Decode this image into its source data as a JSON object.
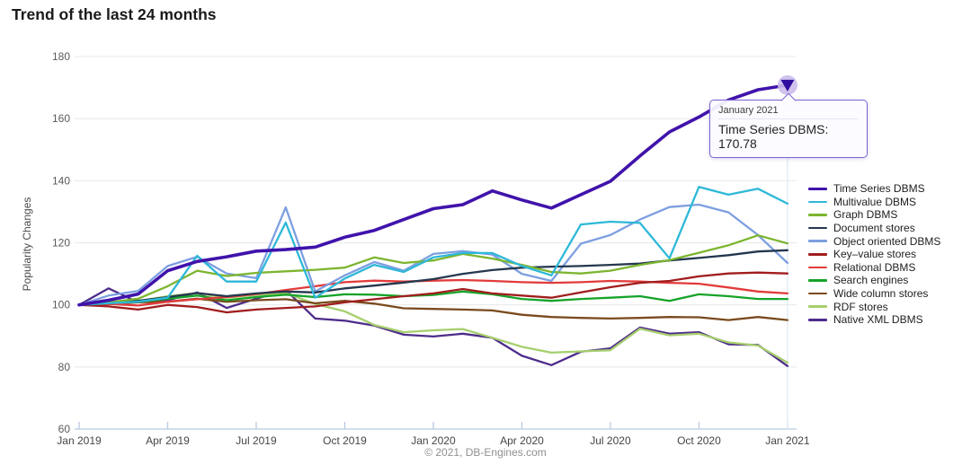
{
  "page": {
    "title": "Trend of the last 24 months",
    "footer": "© 2021, DB-Engines.com"
  },
  "tooltip": {
    "date": "January 2021",
    "value_text": "Time Series DBMS: 170.78"
  },
  "colors": {
    "grid": "#e8e8e8",
    "axis_line": "#c3d3e6",
    "tick": "#b9cadf",
    "crosshair": "#dfe8f6",
    "y_label": "#5a5a5a",
    "x_label": "#454545",
    "axis_title": "#4a4a4a",
    "marker_circle": "#cbbcec",
    "marker_triangle": "#2f0d9e",
    "tooltip_border": "#7e63d2"
  },
  "chart_data": {
    "type": "line",
    "title": "Trend of the last 24 months",
    "xlabel": "",
    "ylabel": "Popularity Changes",
    "ylim": [
      60,
      180
    ],
    "yticks": [
      60,
      80,
      100,
      120,
      140,
      160,
      180
    ],
    "grid": true,
    "legend_position": "right",
    "x": [
      "Jan 2019",
      "Feb 2019",
      "Mar 2019",
      "Apr 2019",
      "May 2019",
      "Jun 2019",
      "Jul 2019",
      "Aug 2019",
      "Sep 2019",
      "Oct 2019",
      "Nov 2019",
      "Dec 2019",
      "Jan 2020",
      "Feb 2020",
      "Mar 2020",
      "Apr 2020",
      "May 2020",
      "Jun 2020",
      "Jul 2020",
      "Aug 2020",
      "Sep 2020",
      "Oct 2020",
      "Nov 2020",
      "Dec 2020",
      "Jan 2021"
    ],
    "x_tick_indices": [
      0,
      3,
      6,
      9,
      12,
      15,
      18,
      21,
      24
    ],
    "x_tick_labels": [
      "Jan 2019",
      "Apr 2019",
      "Jul 2019",
      "Oct 2019",
      "Jan 2020",
      "Apr 2020",
      "Jul 2020",
      "Oct 2020",
      "Jan 2021"
    ],
    "highlight": {
      "series": "Time Series DBMS",
      "x": "Jan 2021",
      "value": 170.78
    },
    "series": [
      {
        "name": "Time Series DBMS",
        "color": "#4013ab",
        "width": 3.6,
        "values": [
          100,
          101.5,
          103.5,
          111,
          114,
          115.5,
          117.3,
          117.8,
          118.6,
          121.8,
          124,
          127.5,
          131,
          132.3,
          136.7,
          133.8,
          131.2,
          135.5,
          139.8,
          148,
          155.7,
          160.5,
          166,
          169.3,
          170.78
        ]
      },
      {
        "name": "Multivalue DBMS",
        "color": "#2eb8d8",
        "width": 2.3,
        "values": [
          100,
          100.5,
          101,
          102.3,
          115.8,
          107.5,
          107.5,
          126.5,
          102.3,
          108.5,
          112.9,
          110.6,
          115.3,
          116.7,
          116.7,
          112.5,
          109.5,
          125.9,
          126.8,
          126.4,
          115,
          138,
          135.5,
          137.4,
          132.6
        ]
      },
      {
        "name": "Graph DBMS",
        "color": "#7cb52f",
        "width": 2.3,
        "values": [
          100,
          100.8,
          102,
          106,
          111,
          109.3,
          110.3,
          110.8,
          111.3,
          112,
          115.3,
          113.5,
          114.3,
          116.4,
          114.9,
          112.9,
          110.6,
          110.1,
          111,
          112.9,
          114.4,
          116.8,
          119.2,
          122.4,
          119.8
        ]
      },
      {
        "name": "Document stores",
        "color": "#24374e",
        "width": 2.3,
        "values": [
          100,
          100.5,
          101.3,
          102.5,
          103.8,
          102.8,
          103.7,
          104.3,
          104,
          105.3,
          106.2,
          107.2,
          108.3,
          110,
          111.2,
          112,
          112.3,
          112.5,
          112.9,
          113.3,
          114.3,
          115.1,
          116,
          117.2,
          117.6
        ]
      },
      {
        "name": "Object oriented DBMS",
        "color": "#7d9fe0",
        "width": 2.3,
        "values": [
          100,
          103,
          104.5,
          112.5,
          115.5,
          110.1,
          108.6,
          131.4,
          104.3,
          109.5,
          113.8,
          111,
          116.4,
          117.3,
          116.2,
          110,
          107.7,
          119.7,
          122.5,
          127.5,
          131.5,
          132.3,
          129.8,
          122.5,
          113.5
        ]
      },
      {
        "name": "Key–value stores",
        "color": "#a11d1d",
        "width": 2.3,
        "values": [
          100,
          99.5,
          98.5,
          100,
          99.3,
          97.6,
          98.5,
          99,
          99.5,
          100.8,
          101.8,
          102.8,
          103.7,
          105.1,
          103.7,
          103,
          102.3,
          104,
          105.7,
          107.1,
          107.7,
          109.2,
          110.1,
          110.4,
          110.1
        ]
      },
      {
        "name": "Relational DBMS",
        "color": "#e23b3b",
        "width": 2.3,
        "values": [
          100,
          100.3,
          99.8,
          101,
          101.8,
          102.5,
          103.5,
          104.8,
          106,
          107.3,
          107.8,
          107.5,
          107.8,
          108,
          107.7,
          107.3,
          107.1,
          107.3,
          107.7,
          107.5,
          107.1,
          106.8,
          105.6,
          104.3,
          103.7
        ]
      },
      {
        "name": "Search engines",
        "color": "#16a329",
        "width": 2.3,
        "values": [
          100,
          100.5,
          101,
          102,
          103,
          101.5,
          102.5,
          103.3,
          102.5,
          103.4,
          103.3,
          102.8,
          103.2,
          104.3,
          103.4,
          101.9,
          101.3,
          101.9,
          102.3,
          102.8,
          101.3,
          103.4,
          102.8,
          101.9,
          101.9
        ]
      },
      {
        "name": "Wide column stores",
        "color": "#7a4a1e",
        "width": 2.3,
        "values": [
          100,
          100.2,
          100.8,
          101,
          102,
          101,
          101.5,
          101.8,
          100.5,
          101.3,
          100.4,
          98.9,
          98.7,
          98.5,
          98.2,
          96.8,
          96.1,
          95.8,
          95.6,
          95.8,
          96.1,
          96,
          95.1,
          96.1,
          95.1
        ]
      },
      {
        "name": "RDF stores",
        "color": "#a6cf6d",
        "width": 2.3,
        "values": [
          100,
          100.5,
          101.2,
          102.8,
          103.8,
          102.3,
          103.2,
          103.8,
          100.3,
          97.9,
          93.5,
          91.2,
          91.8,
          92.2,
          89.4,
          86.5,
          84.6,
          85,
          85.4,
          92.3,
          90.2,
          90.7,
          87.9,
          86.9,
          81.4
        ]
      },
      {
        "name": "Native XML DBMS",
        "color": "#4e2c8a",
        "width": 2.3,
        "values": [
          100,
          105.3,
          100.8,
          101.5,
          104,
          99,
          102,
          104.8,
          95.6,
          94.9,
          93.3,
          90.4,
          89.8,
          90.7,
          89.4,
          83.6,
          80.6,
          84.9,
          86,
          92.7,
          90.7,
          91.2,
          87.3,
          87.1,
          80.3
        ]
      }
    ]
  }
}
